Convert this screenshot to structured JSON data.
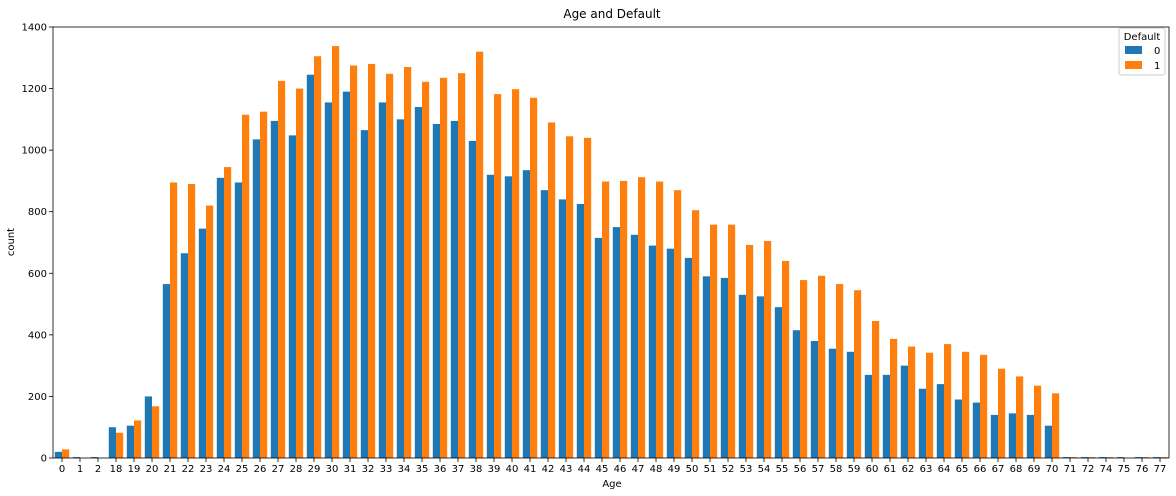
{
  "chart_data": {
    "type": "bar",
    "title": "Age and Default",
    "xlabel": "Age",
    "ylabel": "count",
    "ylim": [
      0,
      1400
    ],
    "yticks": [
      0,
      200,
      400,
      600,
      800,
      1000,
      1200,
      1400
    ],
    "grid": false,
    "legend": {
      "title": "Default",
      "placement": "top-right"
    },
    "categories": [
      "0",
      "1",
      "2",
      "18",
      "19",
      "20",
      "21",
      "22",
      "23",
      "24",
      "25",
      "26",
      "27",
      "28",
      "29",
      "30",
      "31",
      "32",
      "33",
      "34",
      "35",
      "36",
      "37",
      "38",
      "39",
      "40",
      "41",
      "42",
      "43",
      "44",
      "45",
      "46",
      "47",
      "48",
      "49",
      "50",
      "51",
      "52",
      "53",
      "54",
      "55",
      "56",
      "57",
      "58",
      "59",
      "60",
      "61",
      "62",
      "63",
      "64",
      "65",
      "66",
      "67",
      "68",
      "69",
      "70",
      "71",
      "72",
      "74",
      "75",
      "76",
      "77"
    ],
    "series": [
      {
        "name": "0",
        "color": "#1f77b4",
        "values": [
          20,
          3,
          3,
          100,
          105,
          200,
          565,
          665,
          745,
          910,
          895,
          1035,
          1095,
          1048,
          1245,
          1155,
          1190,
          1065,
          1155,
          1100,
          1140,
          1085,
          1095,
          1030,
          920,
          915,
          935,
          870,
          840,
          825,
          715,
          750,
          725,
          690,
          680,
          650,
          590,
          585,
          530,
          525,
          490,
          415,
          380,
          355,
          345,
          270,
          270,
          300,
          225,
          240,
          190,
          180,
          140,
          145,
          140,
          105,
          3,
          3,
          3,
          3,
          3,
          3
        ]
      },
      {
        "name": "1",
        "color": "#ff7f0e",
        "values": [
          28,
          0,
          0,
          82,
          122,
          168,
          895,
          890,
          820,
          945,
          1115,
          1125,
          1225,
          1200,
          1305,
          1338,
          1275,
          1280,
          1248,
          1270,
          1222,
          1235,
          1250,
          1320,
          1182,
          1198,
          1170,
          1090,
          1045,
          1040,
          898,
          900,
          912,
          898,
          870,
          805,
          758,
          758,
          692,
          705,
          640,
          578,
          592,
          565,
          545,
          445,
          387,
          362,
          342,
          370,
          345,
          335,
          290,
          265,
          235,
          210,
          3,
          3,
          3,
          0,
          3,
          3
        ]
      }
    ]
  }
}
